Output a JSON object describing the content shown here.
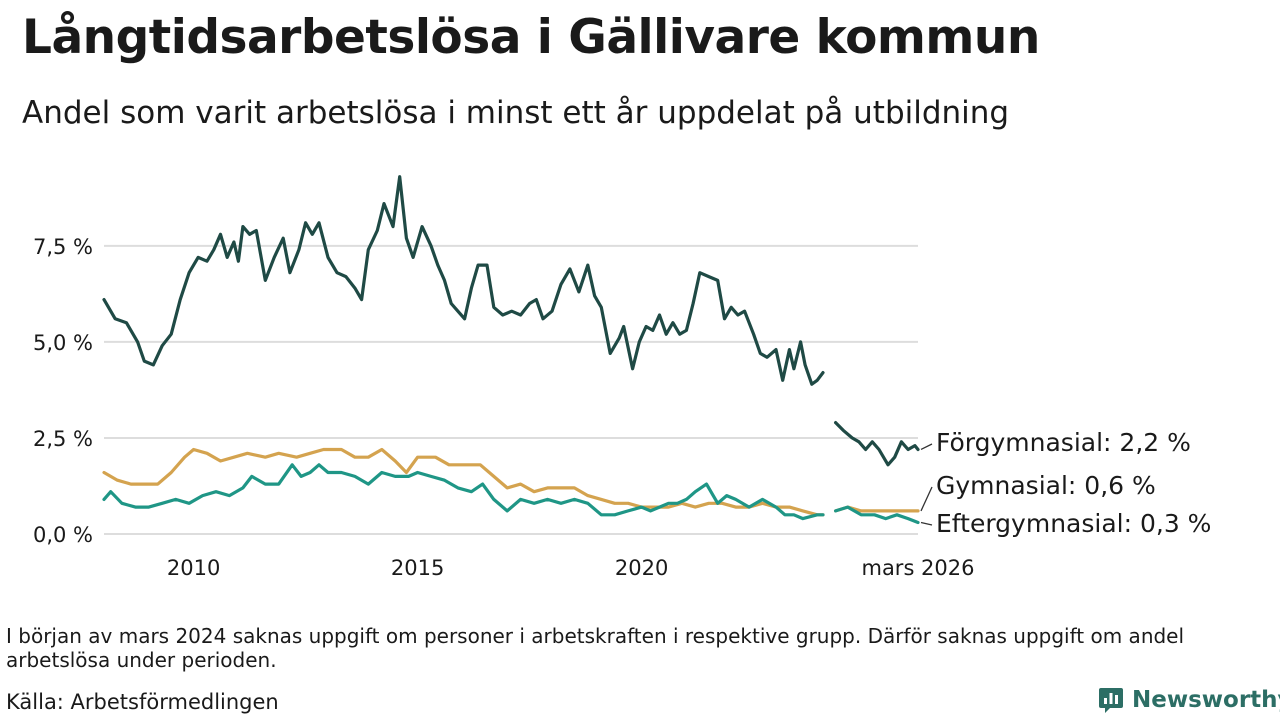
{
  "header": {
    "title": "Långtidsarbetslösa i Gällivare kommun",
    "subtitle": "Andel som varit arbetslösa i minst ett år uppdelat på utbildning"
  },
  "footer": {
    "note": "I början av mars 2024 saknas uppgift om personer i arbetskraften i respektive grupp. Därför saknas uppgift om andel arbetslösa under perioden.",
    "source": "Källa: Arbetsförmedlingen",
    "brand": "Newsworthy"
  },
  "colors": {
    "forgymnasial": "#1f4a45",
    "gymnasial": "#d4a34f",
    "eftergymnasial": "#1f9686",
    "grid": "#dddddd",
    "brand": "#2c6e65"
  },
  "chart_data": {
    "type": "line",
    "title": "Långtidsarbetslösa i Gällivare kommun",
    "subtitle": "Andel som varit arbetslösa i minst ett år uppdelat på utbildning",
    "xlabel": "",
    "ylabel": "",
    "xlim": [
      2008.0,
      2026.17
    ],
    "ylim": [
      0,
      9.5
    ],
    "yticks": [
      0,
      2.5,
      5,
      7.5
    ],
    "ytick_labels": [
      "0,0 %",
      "2,5 %",
      "5,0 %",
      "7,5 %"
    ],
    "xticks": [
      2010,
      2015,
      2020,
      2026.17
    ],
    "xtick_labels": [
      "2010",
      "2015",
      "2020",
      "mars 2026"
    ],
    "grid": true,
    "legend": "end-labels-right",
    "gap": [
      2023.92,
      2024.33
    ],
    "series": [
      {
        "name": "Förgymnasial",
        "label": "Förgymnasial: 2,2 %",
        "color": "#1f4a45",
        "points": [
          [
            2008.0,
            6.1
          ],
          [
            2008.25,
            5.6
          ],
          [
            2008.5,
            5.5
          ],
          [
            2008.75,
            5.0
          ],
          [
            2008.9,
            4.5
          ],
          [
            2009.1,
            4.4
          ],
          [
            2009.3,
            4.9
          ],
          [
            2009.5,
            5.2
          ],
          [
            2009.7,
            6.1
          ],
          [
            2009.9,
            6.8
          ],
          [
            2010.1,
            7.2
          ],
          [
            2010.3,
            7.1
          ],
          [
            2010.45,
            7.4
          ],
          [
            2010.6,
            7.8
          ],
          [
            2010.75,
            7.2
          ],
          [
            2010.9,
            7.6
          ],
          [
            2011.0,
            7.1
          ],
          [
            2011.1,
            8.0
          ],
          [
            2011.25,
            7.8
          ],
          [
            2011.4,
            7.9
          ],
          [
            2011.6,
            6.6
          ],
          [
            2011.8,
            7.2
          ],
          [
            2012.0,
            7.7
          ],
          [
            2012.15,
            6.8
          ],
          [
            2012.35,
            7.4
          ],
          [
            2012.5,
            8.1
          ],
          [
            2012.65,
            7.8
          ],
          [
            2012.8,
            8.1
          ],
          [
            2013.0,
            7.2
          ],
          [
            2013.2,
            6.8
          ],
          [
            2013.4,
            6.7
          ],
          [
            2013.6,
            6.4
          ],
          [
            2013.75,
            6.1
          ],
          [
            2013.9,
            7.4
          ],
          [
            2014.1,
            7.9
          ],
          [
            2014.25,
            8.6
          ],
          [
            2014.45,
            8.0
          ],
          [
            2014.6,
            9.3
          ],
          [
            2014.75,
            7.7
          ],
          [
            2014.9,
            7.2
          ],
          [
            2015.1,
            8.0
          ],
          [
            2015.3,
            7.5
          ],
          [
            2015.45,
            7.0
          ],
          [
            2015.6,
            6.6
          ],
          [
            2015.75,
            6.0
          ],
          [
            2015.9,
            5.8
          ],
          [
            2016.05,
            5.6
          ],
          [
            2016.2,
            6.4
          ],
          [
            2016.35,
            7.0
          ],
          [
            2016.55,
            7.0
          ],
          [
            2016.7,
            5.9
          ],
          [
            2016.9,
            5.7
          ],
          [
            2017.1,
            5.8
          ],
          [
            2017.3,
            5.7
          ],
          [
            2017.5,
            6.0
          ],
          [
            2017.65,
            6.1
          ],
          [
            2017.8,
            5.6
          ],
          [
            2018.0,
            5.8
          ],
          [
            2018.2,
            6.5
          ],
          [
            2018.4,
            6.9
          ],
          [
            2018.6,
            6.3
          ],
          [
            2018.8,
            7.0
          ],
          [
            2018.95,
            6.2
          ],
          [
            2019.1,
            5.9
          ],
          [
            2019.3,
            4.7
          ],
          [
            2019.5,
            5.1
          ],
          [
            2019.6,
            5.4
          ],
          [
            2019.8,
            4.3
          ],
          [
            2019.95,
            5.0
          ],
          [
            2020.1,
            5.4
          ],
          [
            2020.25,
            5.3
          ],
          [
            2020.4,
            5.7
          ],
          [
            2020.55,
            5.2
          ],
          [
            2020.7,
            5.5
          ],
          [
            2020.85,
            5.2
          ],
          [
            2021.0,
            5.3
          ],
          [
            2021.15,
            6.0
          ],
          [
            2021.3,
            6.8
          ],
          [
            2021.5,
            6.7
          ],
          [
            2021.7,
            6.6
          ],
          [
            2021.85,
            5.6
          ],
          [
            2022.0,
            5.9
          ],
          [
            2022.15,
            5.7
          ],
          [
            2022.3,
            5.8
          ],
          [
            2022.5,
            5.2
          ],
          [
            2022.65,
            4.7
          ],
          [
            2022.8,
            4.6
          ],
          [
            2023.0,
            4.8
          ],
          [
            2023.15,
            4.0
          ],
          [
            2023.3,
            4.8
          ],
          [
            2023.4,
            4.3
          ],
          [
            2023.55,
            5.0
          ],
          [
            2023.65,
            4.4
          ],
          [
            2023.8,
            3.9
          ],
          [
            2023.92,
            4.0
          ],
          [
            2024.05,
            4.2
          ],
          [
            2024.33,
            2.9
          ],
          [
            2024.5,
            2.7
          ],
          [
            2024.7,
            2.5
          ],
          [
            2024.85,
            2.4
          ],
          [
            2025.0,
            2.2
          ],
          [
            2025.15,
            2.4
          ],
          [
            2025.3,
            2.2
          ],
          [
            2025.5,
            1.8
          ],
          [
            2025.65,
            2.0
          ],
          [
            2025.8,
            2.4
          ],
          [
            2025.95,
            2.2
          ],
          [
            2026.1,
            2.3
          ],
          [
            2026.17,
            2.2
          ]
        ]
      },
      {
        "name": "Gymnasial",
        "label": "Gymnasial: 0,6 %",
        "color": "#d4a34f",
        "points": [
          [
            2008.0,
            1.6
          ],
          [
            2008.3,
            1.4
          ],
          [
            2008.6,
            1.3
          ],
          [
            2008.9,
            1.3
          ],
          [
            2009.2,
            1.3
          ],
          [
            2009.5,
            1.6
          ],
          [
            2009.8,
            2.0
          ],
          [
            2010.0,
            2.2
          ],
          [
            2010.3,
            2.1
          ],
          [
            2010.6,
            1.9
          ],
          [
            2010.9,
            2.0
          ],
          [
            2011.2,
            2.1
          ],
          [
            2011.6,
            2.0
          ],
          [
            2011.9,
            2.1
          ],
          [
            2012.3,
            2.0
          ],
          [
            2012.6,
            2.1
          ],
          [
            2012.9,
            2.2
          ],
          [
            2013.3,
            2.2
          ],
          [
            2013.6,
            2.0
          ],
          [
            2013.9,
            2.0
          ],
          [
            2014.2,
            2.2
          ],
          [
            2014.5,
            1.9
          ],
          [
            2014.75,
            1.6
          ],
          [
            2015.0,
            2.0
          ],
          [
            2015.4,
            2.0
          ],
          [
            2015.7,
            1.8
          ],
          [
            2016.0,
            1.8
          ],
          [
            2016.4,
            1.8
          ],
          [
            2016.7,
            1.5
          ],
          [
            2017.0,
            1.2
          ],
          [
            2017.3,
            1.3
          ],
          [
            2017.6,
            1.1
          ],
          [
            2017.9,
            1.2
          ],
          [
            2018.2,
            1.2
          ],
          [
            2018.5,
            1.2
          ],
          [
            2018.8,
            1.0
          ],
          [
            2019.1,
            0.9
          ],
          [
            2019.4,
            0.8
          ],
          [
            2019.7,
            0.8
          ],
          [
            2020.0,
            0.7
          ],
          [
            2020.3,
            0.7
          ],
          [
            2020.6,
            0.7
          ],
          [
            2020.9,
            0.8
          ],
          [
            2021.2,
            0.7
          ],
          [
            2021.5,
            0.8
          ],
          [
            2021.8,
            0.8
          ],
          [
            2022.1,
            0.7
          ],
          [
            2022.4,
            0.7
          ],
          [
            2022.7,
            0.8
          ],
          [
            2023.0,
            0.7
          ],
          [
            2023.3,
            0.7
          ],
          [
            2023.6,
            0.6
          ],
          [
            2023.92,
            0.5
          ],
          [
            2024.05,
            0.5
          ],
          [
            2024.33,
            0.6
          ],
          [
            2024.6,
            0.7
          ],
          [
            2024.9,
            0.6
          ],
          [
            2025.2,
            0.6
          ],
          [
            2025.5,
            0.6
          ],
          [
            2025.8,
            0.6
          ],
          [
            2026.17,
            0.6
          ]
        ]
      },
      {
        "name": "Eftergymnasial",
        "label": "Eftergymnasial: 0,3 %",
        "color": "#1f9686",
        "points": [
          [
            2008.0,
            0.9
          ],
          [
            2008.15,
            1.1
          ],
          [
            2008.4,
            0.8
          ],
          [
            2008.7,
            0.7
          ],
          [
            2009.0,
            0.7
          ],
          [
            2009.3,
            0.8
          ],
          [
            2009.6,
            0.9
          ],
          [
            2009.9,
            0.8
          ],
          [
            2010.2,
            1.0
          ],
          [
            2010.5,
            1.1
          ],
          [
            2010.8,
            1.0
          ],
          [
            2011.1,
            1.2
          ],
          [
            2011.3,
            1.5
          ],
          [
            2011.6,
            1.3
          ],
          [
            2011.9,
            1.3
          ],
          [
            2012.2,
            1.8
          ],
          [
            2012.4,
            1.5
          ],
          [
            2012.6,
            1.6
          ],
          [
            2012.8,
            1.8
          ],
          [
            2013.0,
            1.6
          ],
          [
            2013.3,
            1.6
          ],
          [
            2013.6,
            1.5
          ],
          [
            2013.9,
            1.3
          ],
          [
            2014.2,
            1.6
          ],
          [
            2014.5,
            1.5
          ],
          [
            2014.8,
            1.5
          ],
          [
            2015.0,
            1.6
          ],
          [
            2015.3,
            1.5
          ],
          [
            2015.6,
            1.4
          ],
          [
            2015.9,
            1.2
          ],
          [
            2016.2,
            1.1
          ],
          [
            2016.45,
            1.3
          ],
          [
            2016.7,
            0.9
          ],
          [
            2017.0,
            0.6
          ],
          [
            2017.3,
            0.9
          ],
          [
            2017.6,
            0.8
          ],
          [
            2017.9,
            0.9
          ],
          [
            2018.2,
            0.8
          ],
          [
            2018.5,
            0.9
          ],
          [
            2018.8,
            0.8
          ],
          [
            2019.1,
            0.5
          ],
          [
            2019.4,
            0.5
          ],
          [
            2019.7,
            0.6
          ],
          [
            2020.0,
            0.7
          ],
          [
            2020.2,
            0.6
          ],
          [
            2020.4,
            0.7
          ],
          [
            2020.6,
            0.8
          ],
          [
            2020.8,
            0.8
          ],
          [
            2021.0,
            0.9
          ],
          [
            2021.2,
            1.1
          ],
          [
            2021.45,
            1.3
          ],
          [
            2021.7,
            0.8
          ],
          [
            2021.9,
            1.0
          ],
          [
            2022.1,
            0.9
          ],
          [
            2022.4,
            0.7
          ],
          [
            2022.7,
            0.9
          ],
          [
            2023.0,
            0.7
          ],
          [
            2023.2,
            0.5
          ],
          [
            2023.4,
            0.5
          ],
          [
            2023.6,
            0.4
          ],
          [
            2023.92,
            0.5
          ],
          [
            2024.05,
            0.5
          ],
          [
            2024.33,
            0.6
          ],
          [
            2024.6,
            0.7
          ],
          [
            2024.9,
            0.5
          ],
          [
            2025.2,
            0.5
          ],
          [
            2025.45,
            0.4
          ],
          [
            2025.7,
            0.5
          ],
          [
            2025.95,
            0.4
          ],
          [
            2026.17,
            0.3
          ]
        ]
      }
    ]
  }
}
